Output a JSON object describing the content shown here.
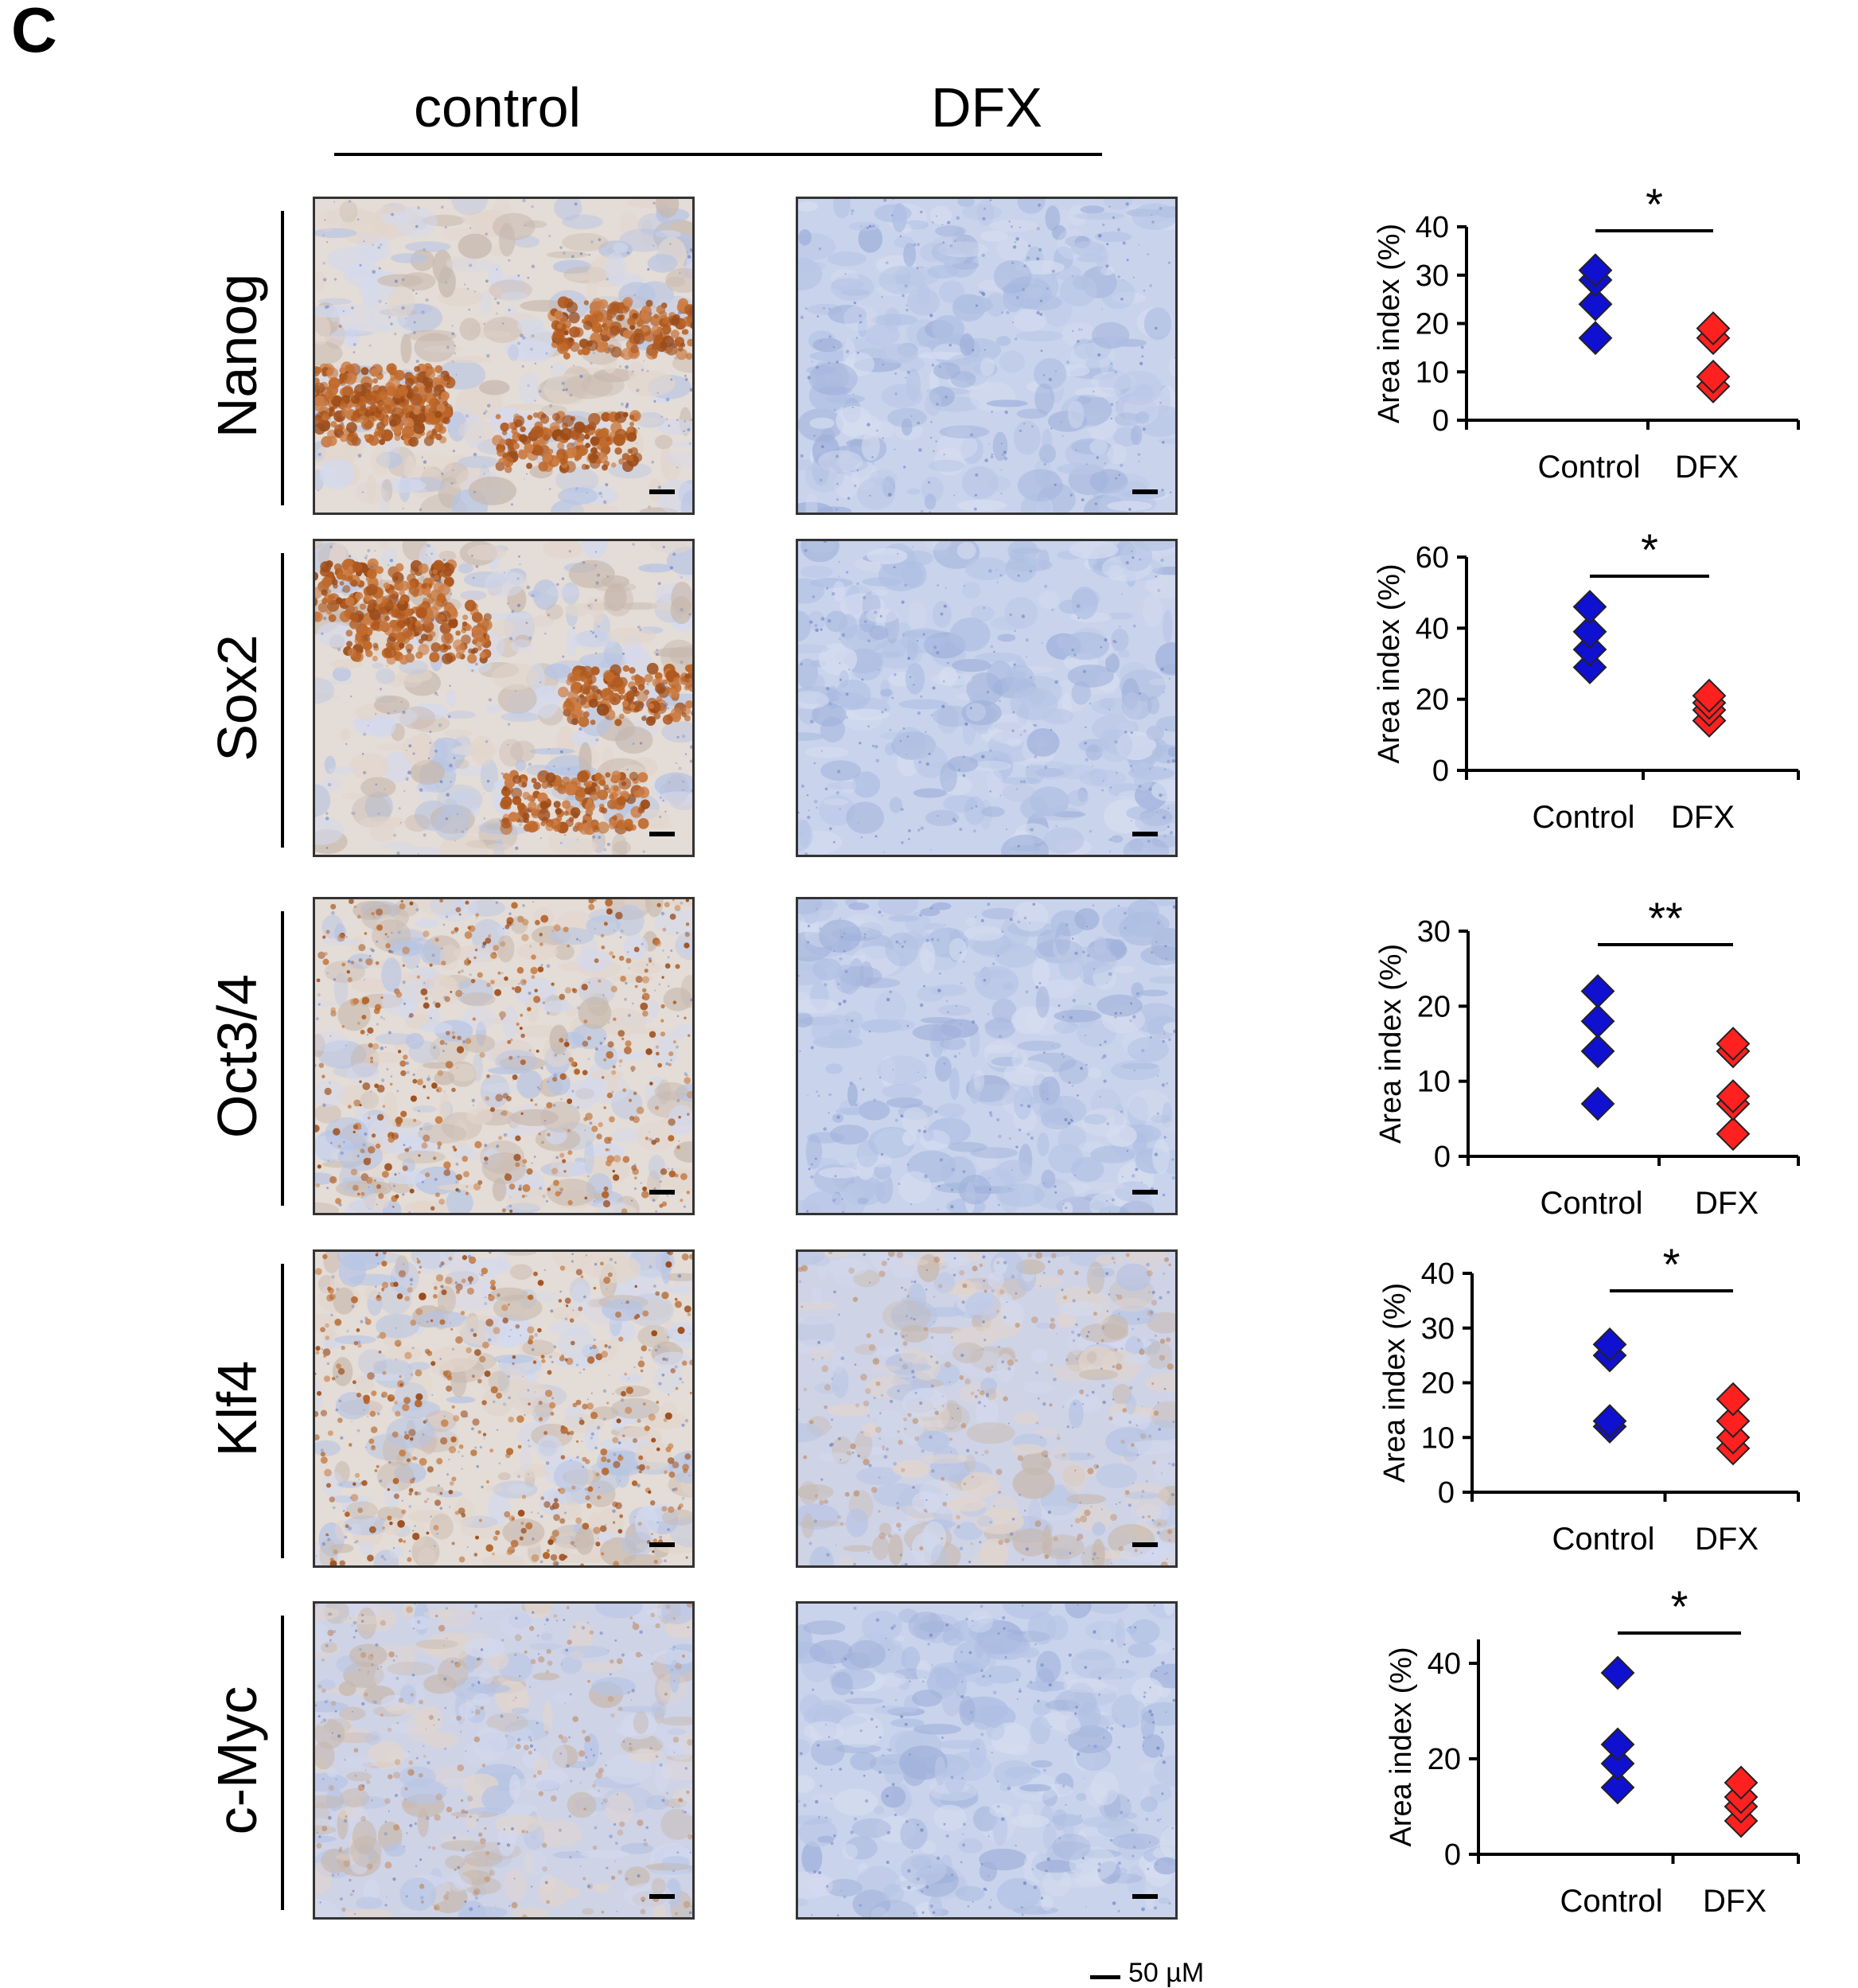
{
  "panel": {
    "letter": "C"
  },
  "groups": {
    "control": "control",
    "treated": "DFX"
  },
  "scale_label": "50 µM",
  "colors": {
    "control_marker": "#1010d0",
    "dfx_marker": "#ff2020",
    "dab_brown": "#b5652a",
    "hematoxylin_blue": "#9fb3d8"
  },
  "rows": [
    {
      "marker": "Nanog",
      "control_image": "brown-strong",
      "dfx_image": "blue"
    },
    {
      "marker": "Sox2",
      "control_image": "brown-strong",
      "dfx_image": "blue"
    },
    {
      "marker": "Oct3/4",
      "control_image": "brown-speckled",
      "dfx_image": "blue"
    },
    {
      "marker": "Klf4",
      "control_image": "brown-speckled",
      "dfx_image": "blue-tan"
    },
    {
      "marker": "c-Myc",
      "control_image": "blue-tan",
      "dfx_image": "blue"
    }
  ],
  "chart_data": [
    {
      "type": "scatter",
      "ylabel": "Area index (%)",
      "categories": [
        "Control",
        "DFX"
      ],
      "ylim": [
        0,
        40
      ],
      "yticks": [
        0,
        10,
        20,
        30,
        40
      ],
      "significance": "*",
      "series": [
        {
          "name": "Control",
          "values": [
            17,
            24,
            29,
            31
          ]
        },
        {
          "name": "DFX",
          "values": [
            7,
            9,
            17,
            19
          ]
        }
      ]
    },
    {
      "type": "scatter",
      "ylabel": "Area index (%)",
      "categories": [
        "Control",
        "DFX"
      ],
      "ylim": [
        0,
        60
      ],
      "yticks": [
        0,
        20,
        40,
        60
      ],
      "significance": "*",
      "series": [
        {
          "name": "Control",
          "values": [
            29,
            34,
            39,
            46
          ]
        },
        {
          "name": "DFX",
          "values": [
            14,
            17,
            19,
            21
          ]
        }
      ]
    },
    {
      "type": "scatter",
      "ylabel": "Area index (%)",
      "categories": [
        "Control",
        "DFX"
      ],
      "ylim": [
        0,
        30
      ],
      "yticks": [
        0,
        10,
        20,
        30
      ],
      "significance": "**",
      "series": [
        {
          "name": "Control",
          "values": [
            7,
            14,
            18,
            22
          ]
        },
        {
          "name": "DFX",
          "values": [
            3,
            7,
            8,
            14,
            15
          ]
        }
      ]
    },
    {
      "type": "scatter",
      "ylabel": "Area index (%)",
      "categories": [
        "Control",
        "DFX"
      ],
      "ylim": [
        0,
        40
      ],
      "yticks": [
        0,
        10,
        20,
        30,
        40
      ],
      "significance": "*",
      "series": [
        {
          "name": "Control",
          "values": [
            12,
            13,
            25,
            27
          ]
        },
        {
          "name": "DFX",
          "values": [
            8,
            10,
            13,
            17
          ]
        }
      ]
    },
    {
      "type": "scatter",
      "ylabel": "Area index (%)",
      "categories": [
        "Control",
        "DFX"
      ],
      "ylim": [
        0,
        45
      ],
      "yticks": [
        0,
        20,
        40
      ],
      "significance": "*",
      "series": [
        {
          "name": "Control",
          "values": [
            14,
            19,
            23,
            38
          ]
        },
        {
          "name": "DFX",
          "values": [
            7,
            10,
            12,
            15
          ]
        }
      ]
    }
  ]
}
